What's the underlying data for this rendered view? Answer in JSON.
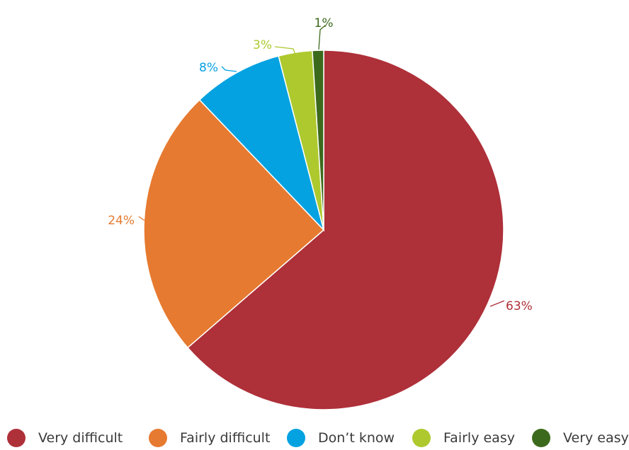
{
  "chart_data": {
    "type": "pie",
    "title": "",
    "slices": [
      {
        "label": "Very difficult",
        "value": 63,
        "display": "63%",
        "color": "#ae3039"
      },
      {
        "label": "Fairly difficult",
        "value": 24,
        "display": "24%",
        "color": "#e67a30"
      },
      {
        "label": "Don’t know",
        "value": 8,
        "display": "8%",
        "color": "#05a2e2"
      },
      {
        "label": "Fairly easy",
        "value": 3,
        "display": "3%",
        "color": "#adc92e"
      },
      {
        "label": "Very easy",
        "value": 1,
        "display": "1%",
        "color": "#3c6a1c"
      }
    ],
    "legend_position": "bottom"
  }
}
